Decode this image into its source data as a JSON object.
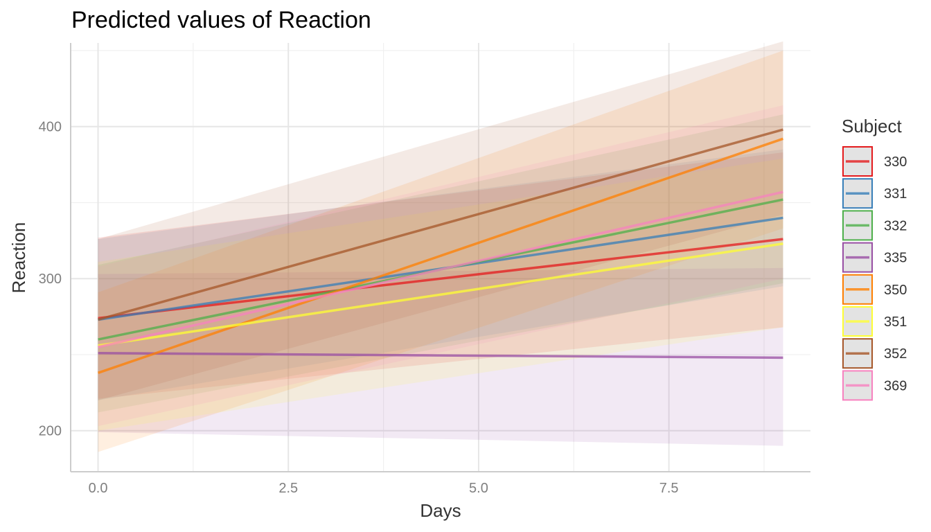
{
  "chart_data": {
    "type": "line",
    "title": "Predicted values of Reaction",
    "xlabel": "Days",
    "ylabel": "Reaction",
    "xlim": [
      -0.36,
      9.36
    ],
    "ylim": [
      173,
      455
    ],
    "x_ticks": [
      0,
      2.5,
      5,
      7.5
    ],
    "x_tick_labels": [
      "0.0",
      "2.5",
      "5.0",
      "7.5"
    ],
    "y_ticks": [
      200,
      300,
      400
    ],
    "y_tick_labels": [
      "200",
      "300",
      "400"
    ],
    "grid": true,
    "legend": {
      "title": "Subject",
      "position": "right"
    },
    "series": [
      {
        "name": "330",
        "color": "#e41a1c",
        "x": [
          0,
          9
        ],
        "y": [
          274,
          326
        ],
        "lower": [
          221,
          268
        ],
        "upper": [
          327,
          383
        ]
      },
      {
        "name": "331",
        "color": "#377eb8",
        "x": [
          0,
          9
        ],
        "y": [
          273,
          340
        ],
        "lower": [
          220,
          295
        ],
        "upper": [
          326,
          385
        ]
      },
      {
        "name": "332",
        "color": "#4daf4a",
        "x": [
          0,
          9
        ],
        "y": [
          260,
          352
        ],
        "lower": [
          212,
          297
        ],
        "upper": [
          309,
          408
        ]
      },
      {
        "name": "335",
        "color": "#984ea3",
        "x": [
          0,
          9
        ],
        "y": [
          251,
          248
        ],
        "lower": [
          199,
          190
        ],
        "upper": [
          303,
          307
        ]
      },
      {
        "name": "350",
        "color": "#ff7f00",
        "x": [
          0,
          9
        ],
        "y": [
          238,
          392
        ],
        "lower": [
          186,
          333
        ],
        "upper": [
          291,
          450
        ]
      },
      {
        "name": "351",
        "color": "#ffff33",
        "x": [
          0,
          9
        ],
        "y": [
          256,
          323
        ],
        "lower": [
          200,
          268
        ],
        "upper": [
          311,
          379
        ]
      },
      {
        "name": "352",
        "color": "#a65628",
        "x": [
          0,
          9
        ],
        "y": [
          273,
          398
        ],
        "lower": [
          220,
          342
        ],
        "upper": [
          326,
          456
        ]
      },
      {
        "name": "369",
        "color": "#f781bf",
        "x": [
          0,
          9
        ],
        "y": [
          255,
          357
        ],
        "lower": [
          203,
          300
        ],
        "upper": [
          308,
          414
        ]
      }
    ]
  }
}
